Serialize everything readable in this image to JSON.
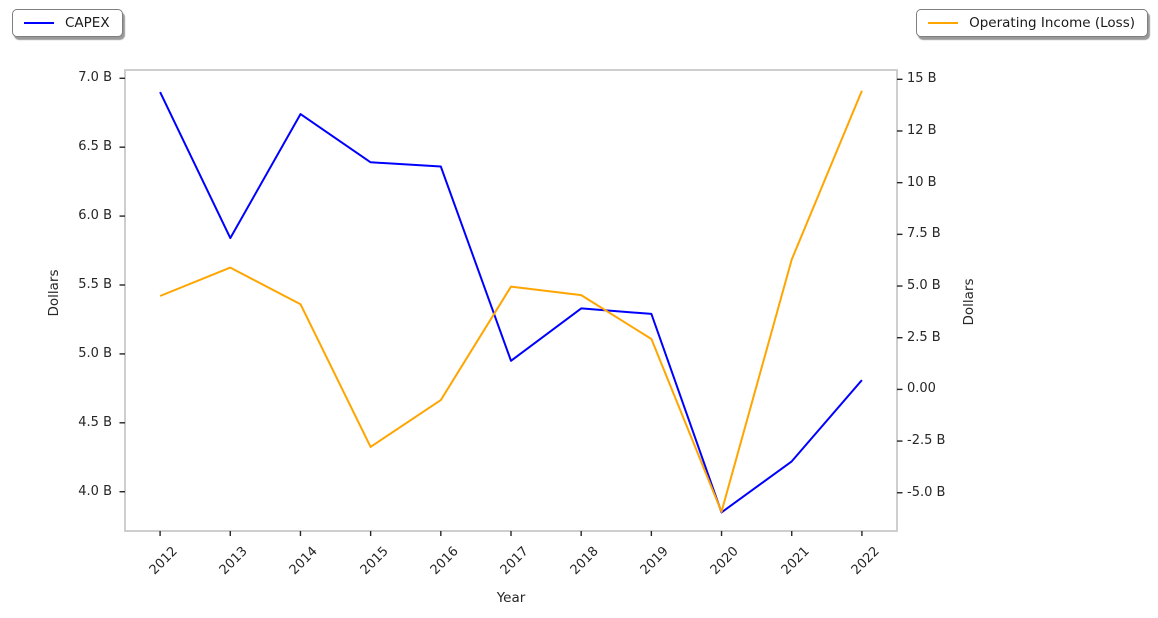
{
  "chart_data": {
    "type": "line",
    "title": "",
    "xlabel": "Year",
    "ylabel_left": "Dollars",
    "ylabel_right": "Dollars",
    "grid": false,
    "x": [
      2012,
      2013,
      2014,
      2015,
      2016,
      2017,
      2018,
      2019,
      2020,
      2021,
      2022
    ],
    "x_tick_labels": [
      "2012",
      "2013",
      "2014",
      "2015",
      "2016",
      "2017",
      "2018",
      "2019",
      "2020",
      "2021",
      "2022"
    ],
    "xlim": [
      2011.5,
      2022.5
    ],
    "series": [
      {
        "name": "CAPEX",
        "axis": "left",
        "color": "#0000ff",
        "unit": "billions of dollars",
        "values": [
          6.9,
          5.84,
          6.74,
          6.39,
          6.36,
          4.95,
          5.33,
          5.29,
          3.85,
          4.22,
          4.81
        ]
      },
      {
        "name": "Operating Income (Loss)",
        "axis": "right",
        "color": "#ffa500",
        "unit": "billions of dollars",
        "values": [
          4.52,
          5.89,
          4.12,
          -2.78,
          -0.52,
          4.97,
          4.56,
          2.44,
          -5.92,
          6.28,
          14.45
        ]
      }
    ],
    "left_axis": {
      "tick_values": [
        7.0,
        6.5,
        6.0,
        5.5,
        5.0,
        4.5,
        4.0
      ],
      "tick_labels": [
        "7.0 B",
        "6.5 B",
        "6.0 B",
        "5.5 B",
        "5.0 B",
        "4.5 B",
        "4.0 B"
      ],
      "range": [
        3.715,
        7.06
      ]
    },
    "right_axis": {
      "tick_values": [
        15,
        12.5,
        10,
        7.5,
        5.0,
        2.5,
        0,
        -2.5,
        -5.0
      ],
      "tick_labels": [
        "15 B",
        "12 B",
        "10 B",
        "7.5 B",
        "5.0 B",
        "2.5 B",
        "0.00",
        "-2.5 B",
        "-5.0 B"
      ],
      "range": [
        -6.85,
        15.45
      ]
    },
    "legend": {
      "left_entry": "CAPEX",
      "right_entry": "Operating Income (Loss)",
      "positions": [
        "outside upper left",
        "outside upper right"
      ]
    },
    "colors": {
      "capex_line": "#0000ff",
      "operating_income_line": "#ffa500",
      "plot_border": "#c9c9c9",
      "tick_mark": "#262626",
      "text": "#262626",
      "background": "#ffffff"
    }
  }
}
